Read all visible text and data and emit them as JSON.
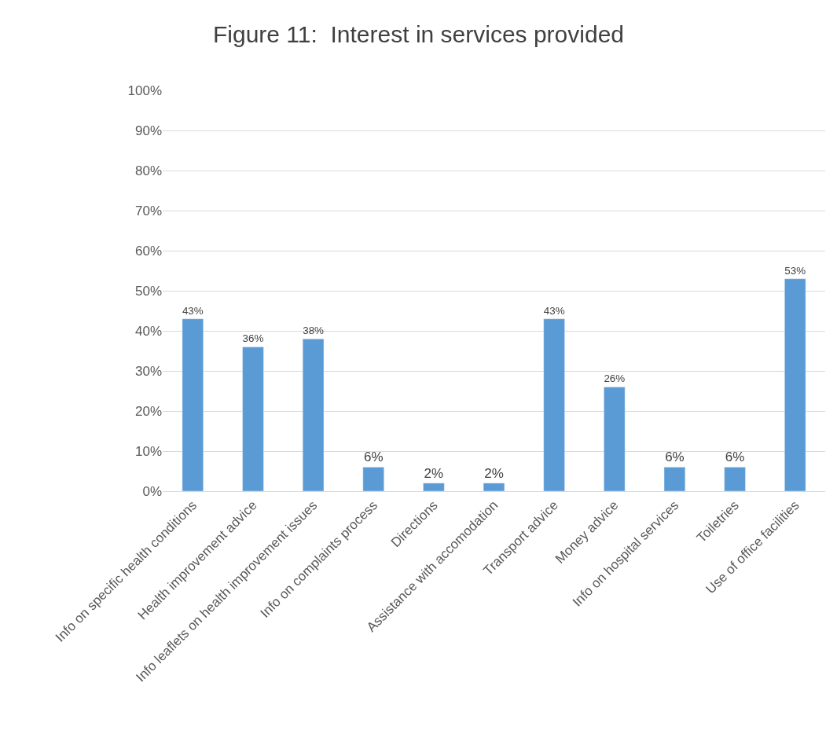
{
  "chart_data": {
    "type": "bar",
    "title": "Figure 11:  Interest in services provided",
    "categories": [
      "Info on specific health conditions",
      "Health improvement advice",
      "Info leaflets on health improvement issues",
      "Info on complaints process",
      "Directions",
      "Assistance with accomodation",
      "Transport advice",
      "Money advice",
      "Info on hospital services",
      "Toiletries",
      "Use of office facilities"
    ],
    "values": [
      43,
      36,
      38,
      6,
      2,
      2,
      43,
      26,
      6,
      6,
      53
    ],
    "value_labels": [
      "43%",
      "36%",
      "38%",
      "6%",
      "2%",
      "2%",
      "43%",
      "26%",
      "6%",
      "6%",
      "53%"
    ],
    "color": "#5b9bd5",
    "ylim": [
      0,
      100
    ],
    "yticks": [
      {
        "value": 0,
        "label": "0%"
      },
      {
        "value": 10,
        "label": "10%"
      },
      {
        "value": 20,
        "label": "20%"
      },
      {
        "value": 30,
        "label": "30%"
      },
      {
        "value": 40,
        "label": "40%"
      },
      {
        "value": 50,
        "label": "50%"
      },
      {
        "value": 60,
        "label": "60%"
      },
      {
        "value": 70,
        "label": "70%"
      },
      {
        "value": 80,
        "label": "80%"
      },
      {
        "value": 90,
        "label": "90%"
      },
      {
        "value": 100,
        "label": "100%"
      }
    ],
    "grid": "y",
    "legend": false
  }
}
